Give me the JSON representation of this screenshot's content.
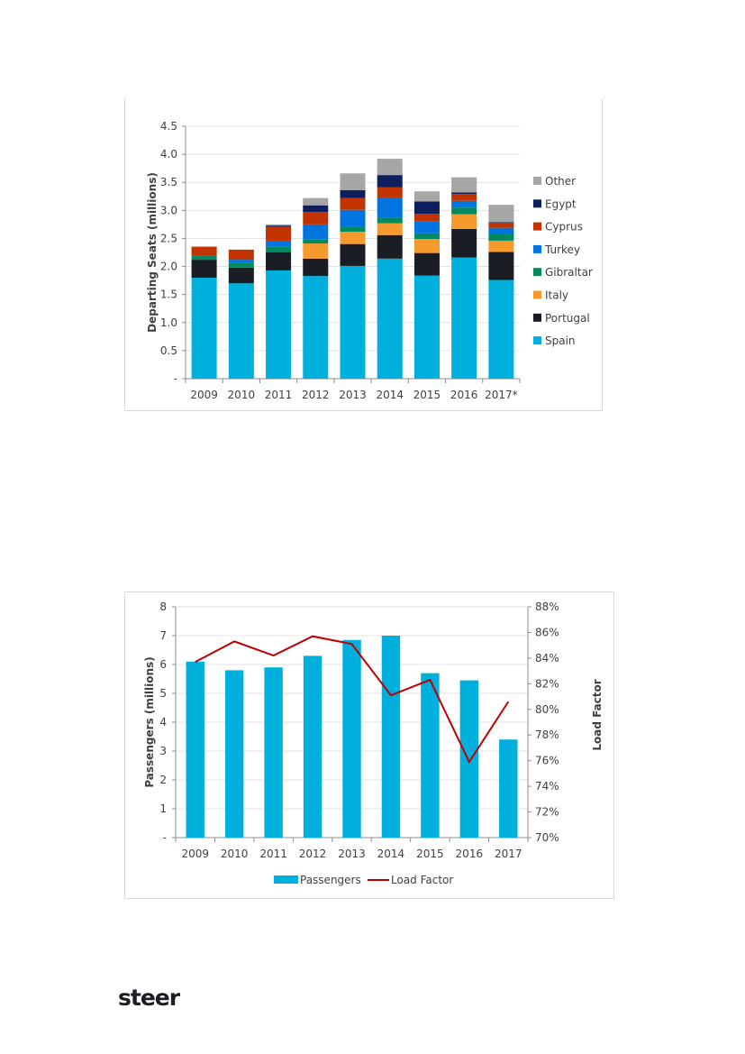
{
  "chart_data": [
    {
      "type": "bar",
      "stacked": true,
      "title": "",
      "xlabel": "",
      "ylabel": "Departing Seats (millions)",
      "ylim": [
        0,
        4.5
      ],
      "yticks": [
        "-",
        "0.5",
        "1.0",
        "1.5",
        "2.0",
        "2.5",
        "3.0",
        "3.5",
        "4.0",
        "4.5"
      ],
      "ytick_values": [
        0,
        0.5,
        1.0,
        1.5,
        2.0,
        2.5,
        3.0,
        3.5,
        4.0,
        4.5
      ],
      "grid": true,
      "legend_position": "right",
      "categories": [
        "2009",
        "2010",
        "2011",
        "2012",
        "2013",
        "2014",
        "2015",
        "2016",
        "2017*"
      ],
      "series": [
        {
          "name": "Spain",
          "color": "#00b0dc",
          "values": [
            1.8,
            1.7,
            1.93,
            1.83,
            2.01,
            2.14,
            1.84,
            2.16,
            1.76
          ]
        },
        {
          "name": "Portugal",
          "color": "#1a1d24",
          "values": [
            0.32,
            0.28,
            0.32,
            0.31,
            0.39,
            0.42,
            0.4,
            0.51,
            0.5
          ]
        },
        {
          "name": "Italy",
          "color": "#f79a2e",
          "values": [
            0.0,
            0.0,
            0.0,
            0.27,
            0.22,
            0.21,
            0.25,
            0.26,
            0.2
          ]
        },
        {
          "name": "Gibraltar",
          "color": "#008a5e",
          "values": [
            0.08,
            0.08,
            0.11,
            0.07,
            0.09,
            0.1,
            0.1,
            0.12,
            0.12
          ]
        },
        {
          "name": "Turkey",
          "color": "#0075e0",
          "values": [
            0.0,
            0.06,
            0.1,
            0.27,
            0.3,
            0.36,
            0.22,
            0.12,
            0.11
          ]
        },
        {
          "name": "Cyprus",
          "color": "#c23300",
          "values": [
            0.15,
            0.18,
            0.25,
            0.22,
            0.21,
            0.18,
            0.13,
            0.12,
            0.09
          ]
        },
        {
          "name": "Egypt",
          "color": "#0d1f5c",
          "values": [
            0.0,
            0.0,
            0.02,
            0.12,
            0.14,
            0.22,
            0.22,
            0.03,
            0.01
          ]
        },
        {
          "name": "Other",
          "color": "#a6a6a6",
          "values": [
            0.01,
            0.0,
            0.02,
            0.13,
            0.3,
            0.29,
            0.18,
            0.27,
            0.31
          ]
        }
      ],
      "legend_order": [
        "Other",
        "Egypt",
        "Cyprus",
        "Turkey",
        "Gibraltar",
        "Italy",
        "Portugal",
        "Spain"
      ]
    },
    {
      "type": "bar+line",
      "title": "",
      "xlabel": "",
      "ylabel": "Passengers (millions)",
      "y2label": "Load Factor",
      "ylim": [
        0,
        8
      ],
      "y2lim": [
        70,
        88
      ],
      "yticks": [
        "-",
        "1",
        "2",
        "3",
        "4",
        "5",
        "6",
        "7",
        "8"
      ],
      "ytick_values": [
        0,
        1,
        2,
        3,
        4,
        5,
        6,
        7,
        8
      ],
      "y2ticks": [
        "70%",
        "72%",
        "74%",
        "76%",
        "78%",
        "80%",
        "82%",
        "84%",
        "86%",
        "88%"
      ],
      "y2tick_values": [
        70,
        72,
        74,
        76,
        78,
        80,
        82,
        84,
        86,
        88
      ],
      "grid": true,
      "legend_position": "bottom",
      "categories": [
        "2009",
        "2010",
        "2011",
        "2012",
        "2013",
        "2014",
        "2015",
        "2016",
        "2017"
      ],
      "series": [
        {
          "name": "Passengers",
          "type": "bar",
          "axis": "left",
          "color": "#00b0dc",
          "values": [
            6.1,
            5.8,
            5.9,
            6.3,
            6.85,
            7.0,
            5.7,
            5.45,
            3.4
          ]
        },
        {
          "name": "Load Factor",
          "type": "line",
          "axis": "right",
          "color": "#c00000",
          "values": [
            83.7,
            85.3,
            84.2,
            85.7,
            85.1,
            81.1,
            82.3,
            75.9,
            80.6
          ]
        }
      ]
    }
  ],
  "footer": {
    "logo_text": "steer"
  }
}
